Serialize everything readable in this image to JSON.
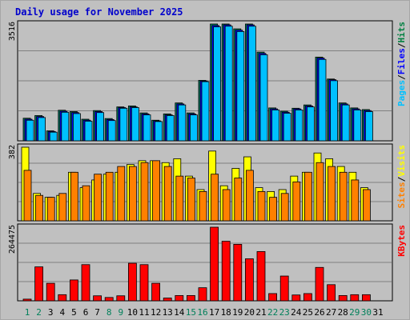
{
  "title": "Daily usage for November 2025",
  "chart_data": [
    {
      "type": "bar",
      "panel": "top",
      "max_label": "3516",
      "ylim": [
        0,
        3516
      ],
      "side_labels": [
        {
          "text": "Pages",
          "color": "#00c0ff"
        },
        {
          "text": "Files",
          "color": "#0000ff"
        },
        {
          "text": "Hits",
          "color": "#008040"
        }
      ],
      "series": [
        {
          "name": "Hits",
          "color": "#00806a",
          "values": [
            680,
            760,
            300,
            920,
            880,
            650,
            910,
            670,
            1020,
            1050,
            840,
            620,
            810,
            1140,
            840,
            1820,
            3516,
            3516,
            3370,
            3516,
            2670,
            990,
            890,
            980,
            1080,
            2520,
            1860,
            1140,
            990,
            940
          ]
        },
        {
          "name": "Files",
          "color": "#0000ff",
          "values": [
            650,
            730,
            280,
            890,
            850,
            620,
            880,
            640,
            1000,
            1020,
            810,
            600,
            780,
            1110,
            810,
            1800,
            3470,
            3490,
            3330,
            3490,
            2630,
            960,
            860,
            960,
            1050,
            2490,
            1840,
            1110,
            960,
            910
          ]
        },
        {
          "name": "Pages",
          "color": "#00c0ff",
          "values": [
            620,
            700,
            260,
            860,
            820,
            590,
            850,
            610,
            980,
            1000,
            780,
            580,
            760,
            1080,
            780,
            1780,
            3430,
            3450,
            3290,
            3450,
            2590,
            930,
            830,
            930,
            1020,
            2450,
            1810,
            1080,
            930,
            880
          ]
        }
      ]
    },
    {
      "type": "bar",
      "panel": "middle",
      "max_label": "382",
      "ylim": [
        0,
        382
      ],
      "side_labels": [
        {
          "text": "Sites",
          "color": "#ff8000"
        },
        {
          "text": "Visits",
          "color": "#ffff00"
        }
      ],
      "series": [
        {
          "name": "Visits",
          "color": "#ffff00",
          "values": [
            382,
            142,
            122,
            132,
            252,
            172,
            212,
            242,
            252,
            292,
            312,
            312,
            302,
            322,
            232,
            162,
            362,
            182,
            272,
            332,
            172,
            152,
            162,
            232,
            252,
            352,
            322,
            282,
            252,
            172
          ]
        },
        {
          "name": "Sites",
          "color": "#ff8000",
          "values": [
            262,
            132,
            122,
            142,
            252,
            182,
            242,
            252,
            282,
            282,
            302,
            312,
            282,
            232,
            222,
            152,
            242,
            162,
            222,
            262,
            152,
            122,
            142,
            202,
            252,
            302,
            282,
            252,
            212,
            162
          ]
        }
      ]
    },
    {
      "type": "bar",
      "panel": "bottom",
      "max_label": "264475",
      "ylim": [
        0,
        264475
      ],
      "side_labels": [
        {
          "text": "KBytes",
          "color": "#ff0000"
        }
      ],
      "series": [
        {
          "name": "KBytes",
          "color": "#ff0000",
          "values": [
            6000,
            122000,
            63000,
            22000,
            75000,
            130000,
            18000,
            12000,
            18000,
            135000,
            130000,
            63000,
            10000,
            19000,
            19000,
            47000,
            264475,
            214000,
            203000,
            151000,
            177000,
            26000,
            89000,
            21000,
            26000,
            120000,
            58000,
            19000,
            22000,
            22000
          ]
        }
      ]
    }
  ],
  "days": [
    "1",
    "2",
    "3",
    "4",
    "5",
    "6",
    "7",
    "8",
    "9",
    "10",
    "11",
    "12",
    "13",
    "14",
    "15",
    "16",
    "17",
    "18",
    "19",
    "20",
    "21",
    "22",
    "23",
    "24",
    "25",
    "26",
    "27",
    "28",
    "29",
    "30",
    "31"
  ],
  "weekend_days": [
    1,
    2,
    8,
    9,
    15,
    16,
    22,
    23,
    29,
    30
  ],
  "colors": {
    "weekend": "#00805a",
    "weekday": "#000000",
    "grid": "#808080",
    "frame_bg": "#c0c0c0"
  }
}
